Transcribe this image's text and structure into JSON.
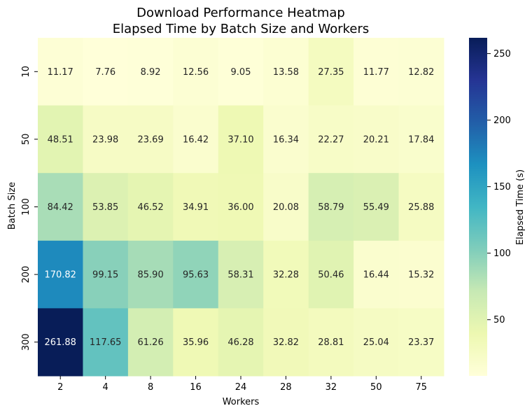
{
  "chart_data": {
    "type": "heatmap",
    "title": [
      "Download Performance Heatmap",
      "Elapsed Time by Batch Size and Workers"
    ],
    "xlabel": "Workers",
    "ylabel": "Batch Size",
    "x_categories": [
      "2",
      "4",
      "8",
      "16",
      "24",
      "28",
      "32",
      "50",
      "75"
    ],
    "y_categories": [
      "10",
      "50",
      "100",
      "200",
      "300"
    ],
    "values": [
      [
        11.17,
        7.76,
        8.92,
        12.56,
        9.05,
        13.58,
        27.35,
        11.77,
        12.82
      ],
      [
        48.51,
        23.98,
        23.69,
        16.42,
        37.1,
        16.34,
        22.27,
        20.21,
        17.84
      ],
      [
        84.42,
        53.85,
        46.52,
        34.91,
        36.0,
        20.08,
        58.79,
        55.49,
        25.88
      ],
      [
        170.82,
        99.15,
        85.9,
        95.63,
        58.31,
        32.28,
        50.46,
        16.44,
        15.32
      ],
      [
        261.88,
        117.65,
        61.26,
        35.96,
        46.28,
        32.82,
        28.81,
        25.04,
        23.37
      ]
    ],
    "colorbar": {
      "label": "Elapsed Time (s)",
      "ticks": [
        50,
        100,
        150,
        200,
        250
      ],
      "range": [
        7.76,
        261.88
      ],
      "colormap": "YlGnBu"
    }
  }
}
